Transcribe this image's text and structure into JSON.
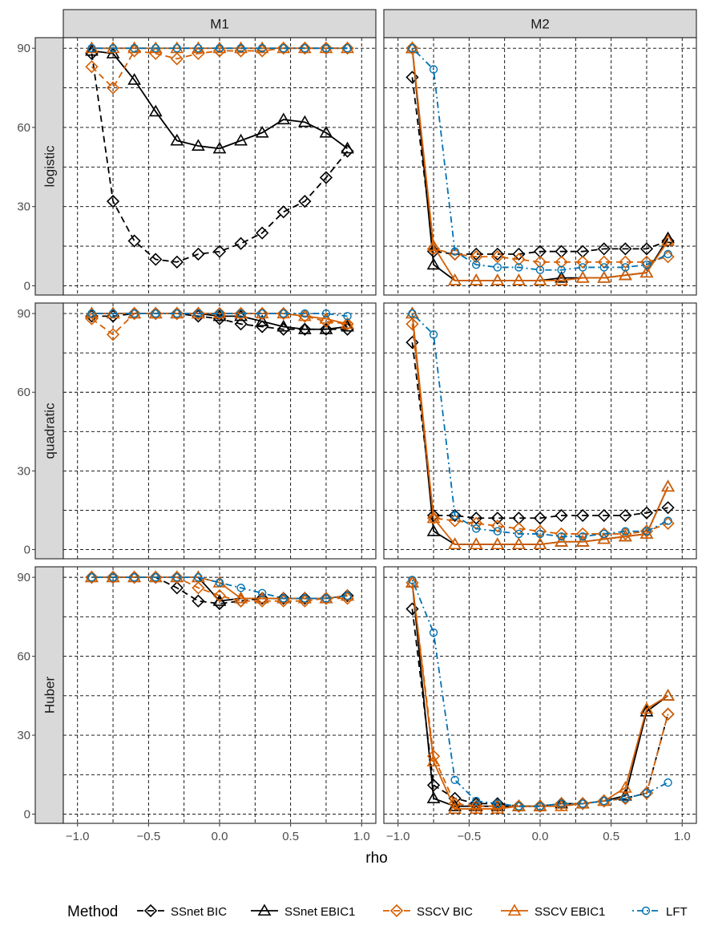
{
  "chart_data": {
    "type": "line",
    "xlabel": "rho",
    "ylabel": "",
    "xlim": [
      -1.1,
      1.1
    ],
    "ylim": [
      0,
      90
    ],
    "x_ticks": [
      "−1.0",
      "−0.5",
      "0.0",
      "0.5",
      "1.0"
    ],
    "y_ticks": [
      "0",
      "30",
      "60",
      "90"
    ],
    "grid": true,
    "legend_position": "bottom",
    "columns": [
      "M1",
      "M2"
    ],
    "rows": [
      "logistic",
      "quadratic",
      "Huber"
    ],
    "x": [
      -0.9,
      -0.75,
      -0.6,
      -0.45,
      -0.3,
      -0.15,
      0.0,
      0.15,
      0.3,
      0.45,
      0.6,
      0.75,
      0.9
    ],
    "legend": {
      "title": "Method",
      "entries": [
        {
          "name": "SSnet BIC",
          "color": "#000000",
          "dash": "dashed",
          "shape": "diamond"
        },
        {
          "name": "SSnet EBIC1",
          "color": "#000000",
          "dash": "solid",
          "shape": "triangle"
        },
        {
          "name": "SSCV BIC",
          "color": "#D55E00",
          "dash": "dashed",
          "shape": "diamond"
        },
        {
          "name": "SSCV EBIC1",
          "color": "#D55E00",
          "dash": "solid",
          "shape": "triangle"
        },
        {
          "name": "LFT",
          "color": "#0072B2",
          "dash": "dotdash",
          "shape": "circle"
        }
      ]
    },
    "panels": [
      {
        "row": "logistic",
        "col": "M1",
        "series": [
          {
            "method": "SSnet BIC",
            "values": [
              88,
              32,
              17,
              10,
              9,
              12,
              13,
              16,
              20,
              28,
              32,
              41,
              51
            ]
          },
          {
            "method": "SSnet EBIC1",
            "values": [
              89,
              88,
              78,
              66,
              55,
              53,
              52,
              55,
              58,
              63,
              62,
              58,
              52
            ]
          },
          {
            "method": "SSCV BIC",
            "values": [
              83,
              75,
              89,
              88,
              86,
              88,
              89,
              89,
              89,
              90,
              90,
              90,
              90
            ]
          },
          {
            "method": "SSCV EBIC1",
            "values": [
              90,
              90,
              90,
              90,
              90,
              90,
              90,
              90,
              90,
              90,
              90,
              90,
              90
            ]
          },
          {
            "method": "LFT",
            "values": [
              90,
              90,
              90,
              90,
              90,
              90,
              90,
              90,
              90,
              90,
              90,
              90,
              90
            ]
          }
        ]
      },
      {
        "row": "logistic",
        "col": "M2",
        "series": [
          {
            "method": "SSnet BIC",
            "values": [
              79,
              13,
              12,
              12,
              12,
              12,
              13,
              13,
              13,
              14,
              14,
              14,
              17
            ]
          },
          {
            "method": "SSnet EBIC1",
            "values": [
              90,
              8,
              2,
              2,
              2,
              2,
              2,
              3,
              3,
              3,
              4,
              5,
              18
            ]
          },
          {
            "method": "SSCV BIC",
            "values": [
              90,
              14,
              12,
              11,
              11,
              10,
              9,
              9,
              9,
              9,
              9,
              9,
              11
            ]
          },
          {
            "method": "SSCV EBIC1",
            "values": [
              90,
              15,
              2,
              2,
              2,
              2,
              2,
              2,
              3,
              3,
              4,
              5,
              17
            ]
          },
          {
            "method": "LFT",
            "values": [
              90,
              82,
              13,
              8,
              7,
              7,
              6,
              6,
              7,
              7,
              7,
              8,
              12
            ]
          }
        ]
      },
      {
        "row": "quadratic",
        "col": "M1",
        "series": [
          {
            "method": "SSnet BIC",
            "values": [
              89,
              89,
              90,
              90,
              90,
              89,
              88,
              86,
              85,
              84,
              84,
              84,
              84
            ]
          },
          {
            "method": "SSnet EBIC1",
            "values": [
              90,
              90,
              90,
              90,
              90,
              90,
              89,
              89,
              87,
              85,
              84,
              84,
              85
            ]
          },
          {
            "method": "SSCV BIC",
            "values": [
              88,
              82,
              90,
              90,
              90,
              90,
              90,
              90,
              90,
              90,
              89,
              87,
              86
            ]
          },
          {
            "method": "SSCV EBIC1",
            "values": [
              90,
              90,
              90,
              90,
              90,
              90,
              90,
              90,
              90,
              90,
              89,
              88,
              86
            ]
          },
          {
            "method": "LFT",
            "values": [
              90,
              90,
              90,
              90,
              90,
              90,
              90,
              90,
              90,
              90,
              90,
              90,
              89
            ]
          }
        ]
      },
      {
        "row": "quadratic",
        "col": "M2",
        "series": [
          {
            "method": "SSnet BIC",
            "values": [
              79,
              13,
              13,
              12,
              12,
              12,
              12,
              13,
              13,
              13,
              13,
              14,
              16
            ]
          },
          {
            "method": "SSnet EBIC1",
            "values": [
              90,
              7,
              2,
              2,
              2,
              2,
              2,
              3,
              3,
              4,
              5,
              6,
              24
            ]
          },
          {
            "method": "SSCV BIC",
            "values": [
              86,
              12,
              11,
              10,
              9,
              8,
              7,
              6,
              6,
              6,
              6,
              7,
              10
            ]
          },
          {
            "method": "SSCV EBIC1",
            "values": [
              90,
              12,
              2,
              2,
              2,
              2,
              2,
              3,
              3,
              4,
              5,
              6,
              24
            ]
          },
          {
            "method": "LFT",
            "values": [
              90,
              82,
              13,
              8,
              7,
              6,
              6,
              5,
              5,
              6,
              7,
              7,
              11
            ]
          }
        ]
      },
      {
        "row": "Huber",
        "col": "M1",
        "series": [
          {
            "method": "SSnet BIC",
            "values": [
              90,
              90,
              90,
              90,
              86,
              81,
              80,
              81,
              82,
              82,
              82,
              82,
              83
            ]
          },
          {
            "method": "SSnet EBIC1",
            "values": [
              90,
              90,
              90,
              90,
              90,
              90,
              81,
              82,
              82,
              82,
              82,
              82,
              83
            ]
          },
          {
            "method": "SSCV BIC",
            "values": [
              90,
              90,
              90,
              90,
              90,
              86,
              83,
              81,
              81,
              81,
              81,
              82,
              82
            ]
          },
          {
            "method": "SSCV EBIC1",
            "values": [
              90,
              90,
              90,
              90,
              90,
              90,
              88,
              82,
              82,
              82,
              82,
              82,
              83
            ]
          },
          {
            "method": "LFT",
            "values": [
              90,
              90,
              90,
              90,
              90,
              90,
              88,
              86,
              84,
              82,
              82,
              82,
              83
            ]
          }
        ]
      },
      {
        "row": "Huber",
        "col": "M2",
        "series": [
          {
            "method": "SSnet BIC",
            "values": [
              78,
              11,
              6,
              4,
              4,
              3,
              3,
              4,
              4,
              5,
              6,
              8,
              38
            ]
          },
          {
            "method": "SSnet EBIC1",
            "values": [
              88,
              6,
              3,
              3,
              3,
              3,
              3,
              4,
              4,
              5,
              7,
              39,
              45
            ]
          },
          {
            "method": "SSCV BIC",
            "values": [
              88,
              22,
              4,
              3,
              3,
              3,
              3,
              4,
              4,
              5,
              6,
              8,
              38
            ]
          },
          {
            "method": "SSCV EBIC1",
            "values": [
              88,
              20,
              2,
              2,
              2,
              3,
              3,
              3,
              4,
              5,
              10,
              40,
              45
            ]
          },
          {
            "method": "LFT",
            "values": [
              89,
              69,
              13,
              5,
              4,
              3,
              3,
              4,
              4,
              5,
              6,
              8,
              12
            ]
          }
        ]
      }
    ]
  }
}
